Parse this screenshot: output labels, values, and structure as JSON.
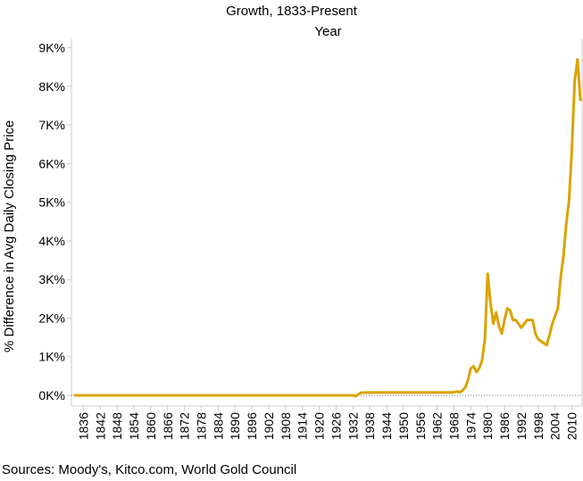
{
  "chart_data": {
    "type": "line",
    "title": "Growth, 1833-Present",
    "xlabel": "Year",
    "ylabel": "% Difference in Avg Daily Closing Price",
    "source": "Sources: Moody's, Kitco.com, World Gold Council",
    "xlim": [
      1833,
      2013
    ],
    "ylim": [
      0,
      9200
    ],
    "yticks": [
      0,
      1000,
      2000,
      3000,
      4000,
      5000,
      6000,
      7000,
      8000,
      9000
    ],
    "ytick_labels": [
      "0K%",
      "1K%",
      "2K%",
      "3K%",
      "4K%",
      "5K%",
      "6K%",
      "7K%",
      "8K%",
      "9K%"
    ],
    "xtick_labels": [
      "1836",
      "1842",
      "1848",
      "1854",
      "1860",
      "1866",
      "1872",
      "1878",
      "1884",
      "1890",
      "1896",
      "1902",
      "1908",
      "1914",
      "1920",
      "1926",
      "1932",
      "1938",
      "1944",
      "1950",
      "1956",
      "1962",
      "1968",
      "1974",
      "1980",
      "1986",
      "1992",
      "1998",
      "2004",
      "2010"
    ],
    "grid": false,
    "reference_line_y": 0,
    "colors": {
      "line": "#D9A400",
      "reference": "#777777",
      "axis": "#CCCCCC"
    },
    "series": [
      {
        "x": [
          1833,
          1900,
          1932,
          1933,
          1934,
          1935,
          1940,
          1950,
          1960,
          1967,
          1968,
          1969,
          1970,
          1971,
          1972,
          1973,
          1974,
          1975,
          1976,
          1977,
          1978,
          1979,
          1980,
          1981,
          1982,
          1983,
          1984,
          1985,
          1986,
          1987,
          1988,
          1989,
          1990,
          1991,
          1992,
          1993,
          1994,
          1995,
          1996,
          1997,
          1998,
          1999,
          2000,
          2001,
          2002,
          2003,
          2004,
          2005,
          2006,
          2007,
          2008,
          2009,
          2010,
          2011,
          2012,
          2013
        ],
        "values": [
          0,
          0,
          0,
          -20,
          30,
          70,
          75,
          75,
          75,
          75,
          80,
          100,
          80,
          120,
          200,
          400,
          700,
          750,
          600,
          700,
          900,
          1450,
          3150,
          2400,
          1850,
          2150,
          1800,
          1600,
          1950,
          2250,
          2200,
          1950,
          1950,
          1850,
          1750,
          1850,
          1950,
          1950,
          1950,
          1600,
          1450,
          1400,
          1350,
          1300,
          1550,
          1850,
          2050,
          2250,
          3050,
          3600,
          4450,
          5050,
          6400,
          8150,
          8700,
          7650
        ]
      }
    ]
  }
}
